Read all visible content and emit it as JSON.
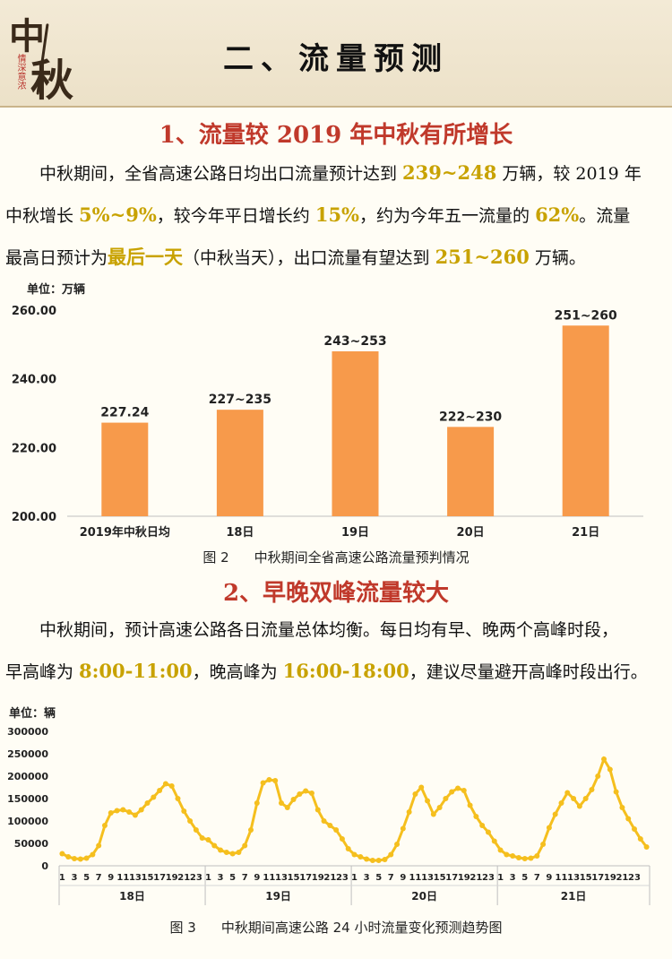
{
  "header": {
    "logo_main_1": "中",
    "logo_main_2": "秋",
    "logo_sub": "情深意浓",
    "title": "二、流量预测"
  },
  "section1": {
    "heading": "1、流量较 2019 年中秋有所增长",
    "p1_a": "中秋期间，全省高速公路日均出口流量预计达到 ",
    "p1_b": "239~248",
    "p1_c": " 万辆，较 ",
    "p1_d": "2019",
    "p1_e": " 年",
    "p2_a": "中秋增长 ",
    "p2_b": "5%~9%",
    "p2_c": "，较今年平日增长约 ",
    "p2_d": "15%",
    "p2_e": "，约为今年五一流量的 ",
    "p2_f": "62%",
    "p2_g": "。流量",
    "p3_a": "最高日预计为",
    "p3_b": "最后一天",
    "p3_c": "（中秋当天），出口流量有望达到 ",
    "p3_d": "251~260",
    "p3_e": " 万辆。"
  },
  "figure2": {
    "caption_num": "图 2",
    "caption_text": "中秋期间全省高速公路流量预判情况"
  },
  "section2": {
    "heading": "2、早晚双峰流量较大",
    "p1": "中秋期间，预计高速公路各日流量总体均衡。每日均有早、晚两个高峰时段，",
    "p2_a": "早高峰为 ",
    "p2_b": "8:00-11:00",
    "p2_c": "，晚高峰为 ",
    "p2_d": "16:00-18:00",
    "p2_e": "，建议尽量避开高峰时段出行。"
  },
  "figure3": {
    "caption_num": "图 3",
    "caption_text": "中秋期间高速公路 24 小时流量变化预测趋势图"
  },
  "colors": {
    "bar": "#f79a4b",
    "line": "#f5bf1e",
    "highlight": "#c8a200",
    "heading": "#c0392b"
  },
  "chart_data": [
    {
      "type": "bar",
      "unit_label": "单位：万辆",
      "categories": [
        "2019年中秋日均",
        "18日",
        "19日",
        "20日",
        "21日"
      ],
      "values": [
        227.24,
        231,
        248,
        226,
        255.5
      ],
      "data_labels": [
        "227.24",
        "227~235",
        "243~253",
        "222~230",
        "251~260"
      ],
      "yticks": [
        "260.00",
        "240.00",
        "220.00",
        "200.00"
      ],
      "ylim": [
        200,
        260
      ],
      "grid": false
    },
    {
      "type": "line",
      "unit_label": "单位：辆",
      "groups": [
        "18日",
        "19日",
        "20日",
        "21日"
      ],
      "hour_ticks": [
        "1",
        "3",
        "5",
        "7",
        "9",
        "11",
        "13",
        "15",
        "17",
        "19",
        "21",
        "23"
      ],
      "yticks": [
        "300000",
        "250000",
        "200000",
        "150000",
        "100000",
        "50000",
        "0"
      ],
      "ylim": [
        0,
        300000
      ],
      "series": [
        {
          "values": [
            27000,
            20000,
            16000,
            15000,
            17000,
            25000,
            45000,
            90000,
            118000,
            123000,
            125000,
            120000,
            113000,
            125000,
            140000,
            153000,
            168000,
            183000,
            178000,
            150000,
            122000,
            100000,
            80000,
            62000,
            58000,
            45000,
            35000,
            30000,
            27000,
            30000,
            45000,
            80000,
            140000,
            185000,
            192000,
            190000,
            140000,
            130000,
            148000,
            160000,
            167000,
            162000,
            125000,
            100000,
            90000,
            80000,
            60000,
            38000,
            25000,
            20000,
            15000,
            12000,
            12000,
            14000,
            25000,
            48000,
            83000,
            120000,
            160000,
            175000,
            145000,
            115000,
            130000,
            150000,
            165000,
            173000,
            168000,
            135000,
            110000,
            90000,
            75000,
            55000,
            35000,
            25000,
            22000,
            18000,
            16000,
            17000,
            22000,
            48000,
            85000,
            115000,
            140000,
            163000,
            150000,
            133000,
            150000,
            170000,
            200000,
            238000,
            215000,
            165000,
            130000,
            105000,
            82000,
            60000,
            42000
          ]
        }
      ]
    }
  ]
}
